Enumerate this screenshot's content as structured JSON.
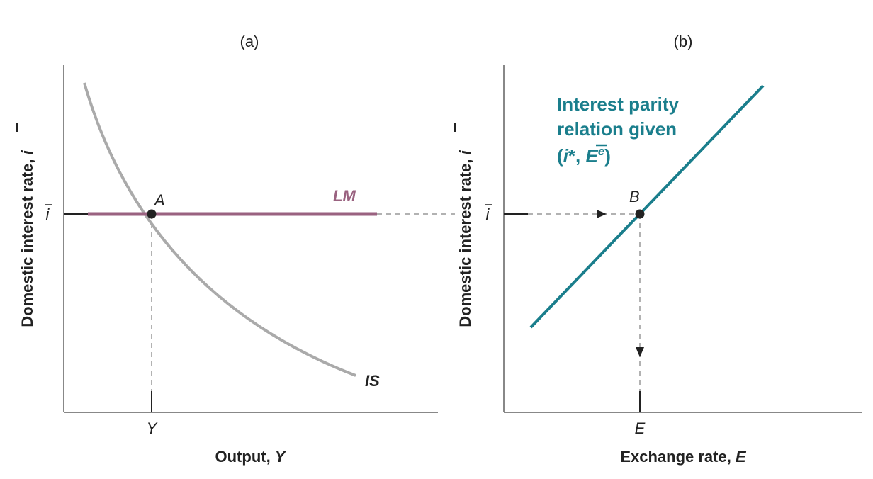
{
  "panel_a": {
    "label": "(a)",
    "ylabel_text": "Domestic interest rate, ",
    "ylabel_var": "i",
    "y_tick": "i",
    "xlabel_text": "Output, ",
    "xlabel_var": "Y",
    "x_tick": "Y",
    "point_label": "A",
    "lm_label": "LM",
    "is_label": "IS"
  },
  "panel_b": {
    "label": "(b)",
    "ylabel_text": "Domestic interest rate, ",
    "ylabel_var": "i",
    "y_tick": "i",
    "xlabel_text": "Exchange rate, ",
    "xlabel_var": "E",
    "x_tick": "E",
    "point_label": "B",
    "curve_line1": "Interest parity",
    "curve_line2": "relation given",
    "curve_line3_open": "(",
    "curve_line3_istar": "i",
    "curve_line3_star": "*, ",
    "curve_line3_E": "E",
    "curve_line3_e": "e",
    "curve_line3_close": ")"
  },
  "colors": {
    "lm": "#9a6280",
    "is": "#aaaaaa",
    "interest_parity": "#1a7e8c",
    "axis": "#888888",
    "dashed": "#999999",
    "text": "#222222"
  }
}
